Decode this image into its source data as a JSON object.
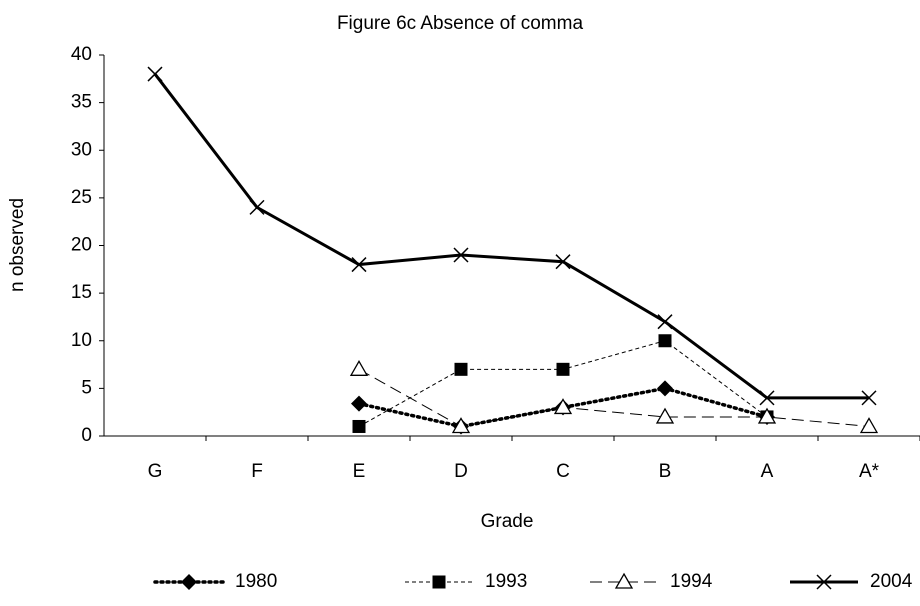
{
  "chart_data": {
    "type": "line",
    "title": "Figure 6c   Absence of comma",
    "x_label": "Grade",
    "y_label": "n observed",
    "categories": [
      "G",
      "F",
      "E",
      "D",
      "C",
      "B",
      "A",
      "A*"
    ],
    "ylim": [
      0,
      40
    ],
    "yticks": [
      0,
      5,
      10,
      15,
      20,
      25,
      30,
      35,
      40
    ],
    "legend": "bottom",
    "series": [
      {
        "name": "1980",
        "color": "#000000",
        "marker": "diamond",
        "dash": "dotted",
        "values": [
          null,
          null,
          3.4,
          1,
          3,
          5,
          2,
          null
        ]
      },
      {
        "name": "1993",
        "color": "#000000",
        "marker": "square",
        "dash": "short-dash",
        "values": [
          null,
          null,
          1,
          7,
          7,
          10,
          2,
          null
        ]
      },
      {
        "name": "1994",
        "color": "#000000",
        "marker": "triangle",
        "dash": "long-dash",
        "values": [
          null,
          null,
          7,
          1,
          3,
          2,
          2,
          1
        ]
      },
      {
        "name": "2004",
        "color": "#000000",
        "marker": "cross",
        "dash": "solid",
        "values": [
          38,
          24,
          18,
          19,
          18.3,
          12,
          4,
          4
        ]
      }
    ]
  }
}
